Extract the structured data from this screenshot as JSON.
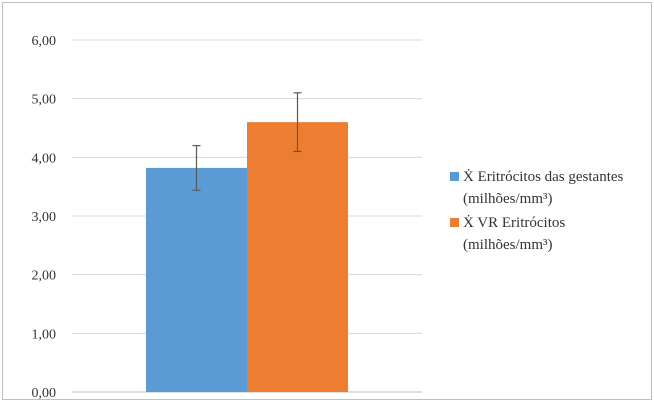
{
  "chart_data": {
    "type": "bar",
    "title": "",
    "xlabel": "",
    "ylabel": "",
    "ylim": [
      0,
      6
    ],
    "ytick_values": [
      0,
      1,
      2,
      3,
      4,
      5,
      6
    ],
    "ytick_labels": [
      "0,00",
      "1,00",
      "2,00",
      "3,00",
      "4,00",
      "5,00",
      "6,00"
    ],
    "grid": true,
    "legend_position": "right",
    "series": [
      {
        "name": "Ẋ Eritrócitos das gestantes (milhões/mm³)",
        "legend_lines": [
          "Ẋ Eritrócitos das gestantes",
          "(milhões/mm³)"
        ],
        "values": [
          3.82
        ],
        "error": [
          0.38
        ],
        "color": "#5b9bd5"
      },
      {
        "name": "Ẋ VR Eritrócitos (milhões/mm³)",
        "legend_lines": [
          "Ẋ VR Eritrócitos",
          "(milhões/mm³)"
        ],
        "values": [
          4.6
        ],
        "error": [
          0.5
        ],
        "color": "#ed7d31"
      }
    ]
  }
}
